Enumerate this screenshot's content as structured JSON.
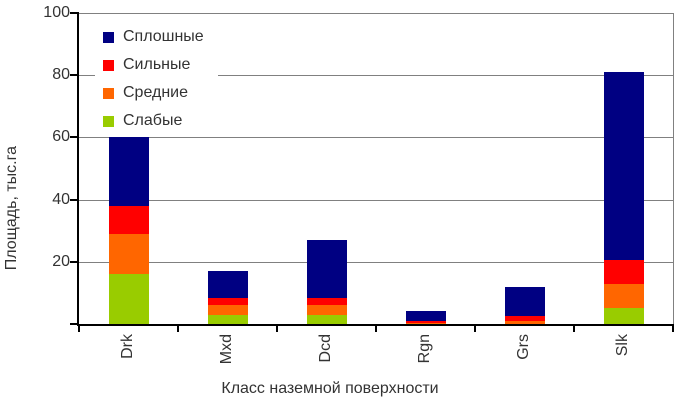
{
  "chart_data": {
    "type": "bar",
    "stacked": true,
    "title": "",
    "xlabel": "Класс наземной поверхности",
    "ylabel": "Площадь, тыс.га",
    "categories": [
      "Drk",
      "Mxd",
      "Dcd",
      "Rgn",
      "Grs",
      "Slk"
    ],
    "series": [
      {
        "name": "Слабые",
        "color": "#99CC00",
        "values": [
          16,
          3,
          3,
          0,
          0,
          5
        ]
      },
      {
        "name": "Средние",
        "color": "#FF6600",
        "values": [
          13,
          3,
          3,
          0.3,
          1,
          8
        ]
      },
      {
        "name": "Сильные",
        "color": "#FF0000",
        "values": [
          9,
          2.5,
          2.5,
          0.8,
          1.5,
          7.5
        ]
      },
      {
        "name": "Сплошные",
        "color": "#000082",
        "values": [
          22,
          8.5,
          18.5,
          3,
          9.5,
          60.5
        ]
      }
    ],
    "category_totals": [
      60,
      17,
      27,
      4.1,
      12,
      81
    ],
    "ylim": [
      0,
      100
    ],
    "yticks": [
      100,
      80,
      60,
      40,
      20
    ],
    "grid": true,
    "legend": {
      "position": "top-left-inside",
      "order": [
        "Сплошные",
        "Сильные",
        "Средние",
        "Слабые"
      ]
    }
  }
}
